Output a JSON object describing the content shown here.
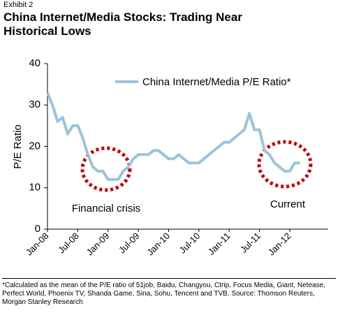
{
  "chart_data": {
    "type": "line",
    "exhibit": "Exhibit 2",
    "title": "China Internet/Media Stocks: Trading Near Historical Lows",
    "y_label": "P/E Ratio",
    "categories": [
      "Jan-08",
      null,
      null,
      null,
      null,
      null,
      "Jul-08",
      null,
      null,
      null,
      null,
      null,
      "Jan-09",
      null,
      null,
      null,
      null,
      null,
      "Jul-09",
      null,
      null,
      null,
      null,
      null,
      "Jan-10",
      null,
      null,
      null,
      null,
      null,
      "Jul-10",
      null,
      null,
      null,
      null,
      null,
      "Jan-11",
      null,
      null,
      null,
      null,
      null,
      "Jul-11",
      null,
      null,
      null,
      null,
      null,
      "Jan-12",
      null,
      null
    ],
    "series": [
      {
        "name": "China Internet/Media P/E Ratio*",
        "color": "#9cc4da",
        "values": [
          33,
          30,
          26,
          27,
          23,
          25,
          25,
          22,
          18,
          15,
          14,
          14,
          12,
          12,
          12,
          14,
          15,
          17,
          18,
          18,
          18,
          19,
          19,
          18,
          17,
          17,
          18,
          17,
          16,
          16,
          16,
          17,
          18,
          19,
          20,
          21,
          21,
          22,
          23,
          24,
          28,
          24,
          24,
          19,
          18,
          16,
          15,
          14,
          14,
          16,
          16
        ]
      }
    ],
    "ylim": [
      0,
      40
    ],
    "yticks": [
      0,
      10,
      20,
      30,
      40
    ],
    "grid": false,
    "annotations": [
      "Financial crisis",
      "Current"
    ],
    "footnote": "*Calculated as the mean of the P/E ratio of 51job, Baidu, Changyou, Ctrip, Focus Media, Giant, Netease, Perfect World, Phoenix TV, Shanda Game, Sina, Sohu, Tencent and TVB. Source: Thomson Reuters, Morgan Stanley Research"
  }
}
